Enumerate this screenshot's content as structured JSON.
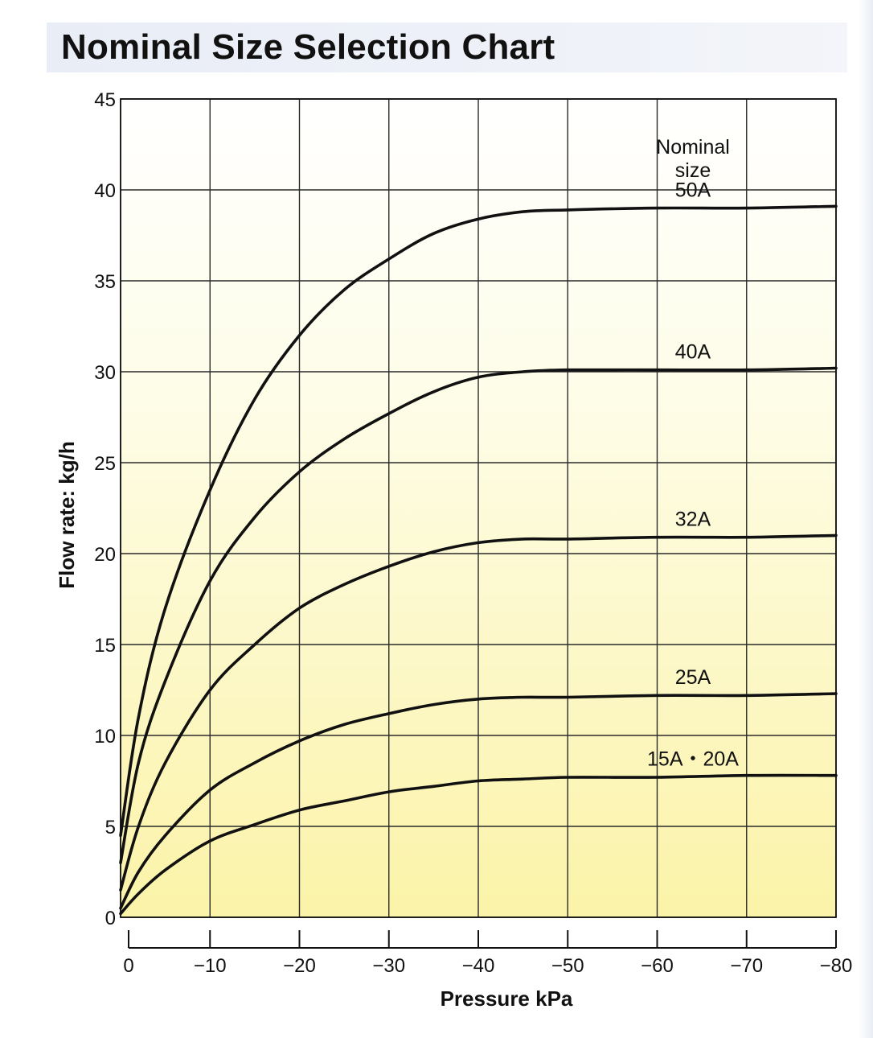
{
  "title": "Nominal Size Selection Chart",
  "chart_data": {
    "type": "line",
    "title": "Nominal Size Selection Chart",
    "xlabel": "Pressure kPa",
    "ylabel": "Flow rate: kg/h",
    "xlim": [
      0,
      -80
    ],
    "ylim": [
      0,
      45
    ],
    "x_ticks": [
      0,
      -10,
      -20,
      -30,
      -40,
      -50,
      -60,
      -70,
      -80
    ],
    "x_tick_labels": [
      "0",
      "−10",
      "−20",
      "−30",
      "−40",
      "−50",
      "−60",
      "−70",
      "−80"
    ],
    "y_ticks": [
      0,
      5,
      10,
      15,
      20,
      25,
      30,
      35,
      40,
      45
    ],
    "y_tick_labels": [
      "0",
      "5",
      "10",
      "15",
      "20",
      "25",
      "30",
      "35",
      "40",
      "45"
    ],
    "grid": true,
    "legend_title": [
      "Nominal",
      "size"
    ],
    "x": [
      0,
      -2,
      -5,
      -10,
      -15,
      -20,
      -25,
      -30,
      -35,
      -40,
      -45,
      -50,
      -60,
      -70,
      -80
    ],
    "series": [
      {
        "name": "50A",
        "values": [
          4.5,
          11,
          17,
          23.5,
          28.5,
          32,
          34.5,
          36.2,
          37.6,
          38.4,
          38.8,
          38.9,
          39.0,
          39.0,
          39.1
        ]
      },
      {
        "name": "40A",
        "values": [
          3,
          8.5,
          13,
          18.5,
          22,
          24.5,
          26.3,
          27.7,
          28.9,
          29.7,
          30.0,
          30.1,
          30.1,
          30.1,
          30.2
        ]
      },
      {
        "name": "32A",
        "values": [
          1.5,
          5,
          8.5,
          12.5,
          15,
          17,
          18.3,
          19.3,
          20.1,
          20.6,
          20.8,
          20.8,
          20.9,
          20.9,
          21.0
        ]
      },
      {
        "name": "25A",
        "values": [
          0.5,
          2.5,
          4.5,
          7,
          8.5,
          9.7,
          10.6,
          11.2,
          11.7,
          12.0,
          12.1,
          12.1,
          12.2,
          12.2,
          12.3
        ]
      },
      {
        "name": "15A・20A",
        "values": [
          0.2,
          1.3,
          2.6,
          4.2,
          5.1,
          5.9,
          6.4,
          6.9,
          7.2,
          7.5,
          7.6,
          7.7,
          7.7,
          7.8,
          7.8
        ]
      }
    ],
    "colors": {
      "curve": "#111111",
      "grid_major": "#2a2a2a",
      "bg_top": "#ffffff",
      "bg_bottom": "#fbf3a8"
    }
  }
}
